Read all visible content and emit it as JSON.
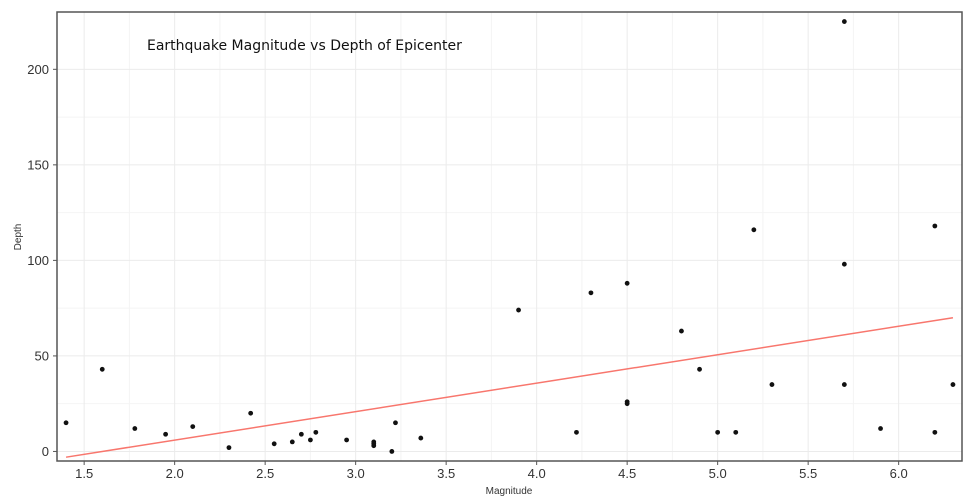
{
  "chart_data": {
    "type": "scatter",
    "title": "Earthquake Magnitude vs Depth of Epicenter",
    "xlabel": "Magnitude",
    "ylabel": "Depth",
    "xlim": [
      1.35,
      6.35
    ],
    "ylim": [
      -5,
      230
    ],
    "xticks": [
      1.5,
      2.0,
      2.5,
      3.0,
      3.5,
      4.0,
      4.5,
      5.0,
      5.5,
      6.0
    ],
    "yticks": [
      0,
      50,
      100,
      150,
      200
    ],
    "grid": true,
    "colors": {
      "points": "#111111",
      "trendline": "#f8766d",
      "grid": "#ebebeb",
      "frame": "#555555"
    },
    "points": [
      {
        "x": 1.4,
        "y": 15
      },
      {
        "x": 1.6,
        "y": 43
      },
      {
        "x": 1.78,
        "y": 12
      },
      {
        "x": 1.95,
        "y": 9
      },
      {
        "x": 2.1,
        "y": 13
      },
      {
        "x": 2.3,
        "y": 2
      },
      {
        "x": 2.42,
        "y": 20
      },
      {
        "x": 2.55,
        "y": 4
      },
      {
        "x": 2.65,
        "y": 5
      },
      {
        "x": 2.7,
        "y": 9
      },
      {
        "x": 2.75,
        "y": 6
      },
      {
        "x": 2.78,
        "y": 10
      },
      {
        "x": 2.95,
        "y": 6
      },
      {
        "x": 3.1,
        "y": 4
      },
      {
        "x": 3.1,
        "y": 3
      },
      {
        "x": 3.1,
        "y": 5
      },
      {
        "x": 3.2,
        "y": 0
      },
      {
        "x": 3.22,
        "y": 15
      },
      {
        "x": 3.36,
        "y": 7
      },
      {
        "x": 3.9,
        "y": 74
      },
      {
        "x": 4.22,
        "y": 10
      },
      {
        "x": 4.3,
        "y": 83
      },
      {
        "x": 4.5,
        "y": 88
      },
      {
        "x": 4.5,
        "y": 26
      },
      {
        "x": 4.5,
        "y": 25
      },
      {
        "x": 4.8,
        "y": 63
      },
      {
        "x": 4.9,
        "y": 43
      },
      {
        "x": 5.0,
        "y": 10
      },
      {
        "x": 5.1,
        "y": 10
      },
      {
        "x": 5.2,
        "y": 116
      },
      {
        "x": 5.3,
        "y": 35
      },
      {
        "x": 5.7,
        "y": 225
      },
      {
        "x": 5.7,
        "y": 98
      },
      {
        "x": 5.7,
        "y": 35
      },
      {
        "x": 5.9,
        "y": 12
      },
      {
        "x": 6.2,
        "y": 118
      },
      {
        "x": 6.2,
        "y": 10
      },
      {
        "x": 6.3,
        "y": 35
      }
    ],
    "trendline": {
      "x": [
        1.4,
        6.3
      ],
      "y": [
        -3,
        70
      ]
    }
  }
}
